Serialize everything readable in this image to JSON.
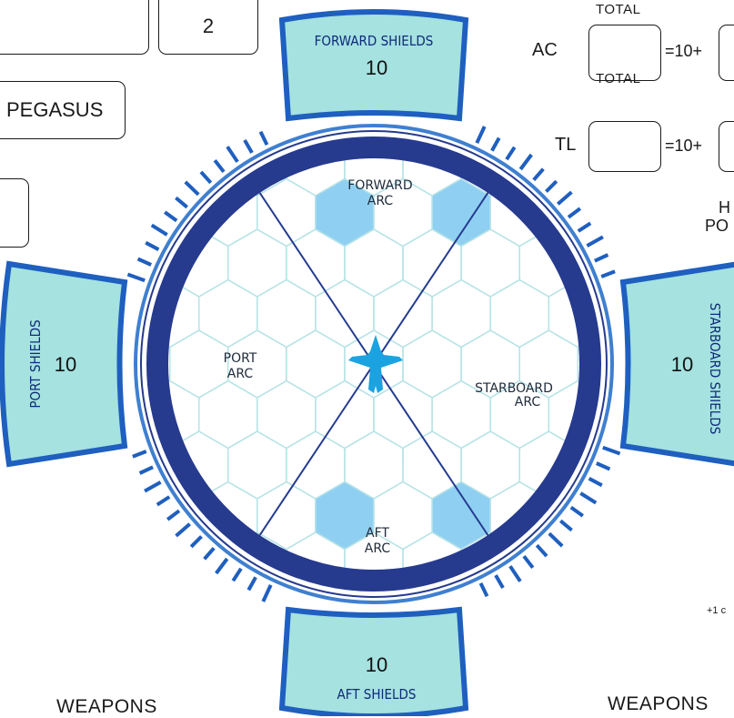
{
  "sheet": {
    "top_value_box": "2",
    "ship_name": "PEGASUS",
    "fragment_label_line1": "H",
    "fragment_label_line2": "PO",
    "note_fragment": "+1 c",
    "weapons_left": "WEAPONS",
    "weapons_right": "WEAPONS"
  },
  "stats": {
    "ac": {
      "label": "AC",
      "total_label": "TOTAL",
      "total_value": "",
      "formula": "=10+"
    },
    "tl": {
      "label": "TL",
      "total_label": "TOTAL",
      "total_value": "",
      "formula": "=10+"
    }
  },
  "shields": {
    "forward": {
      "title": "FORWARD SHIELDS",
      "value": "10"
    },
    "aft": {
      "title": "AFT SHIELDS",
      "value": "10"
    },
    "port": {
      "title": "PORT SHIELDS",
      "value": "10"
    },
    "starboard": {
      "title": "STARBOARD SHIELDS",
      "value": "10"
    }
  },
  "arcs": {
    "forward": [
      "FORWARD",
      "ARC"
    ],
    "aft": [
      "AFT",
      "ARC"
    ],
    "port": [
      "PORT",
      "ARC"
    ],
    "starboard": [
      "STARBOARD",
      "ARC"
    ]
  },
  "colors": {
    "ring": "#263a8e",
    "ring_light": "#3f7fd0",
    "shield_fill": "#a5e2e0",
    "shield_border": "#1f5fbf",
    "hex_line": "#b8e3e6",
    "hex_fill": "#8fd0f2",
    "ship": "#1aa3e0",
    "arc_line": "#243b8e"
  }
}
